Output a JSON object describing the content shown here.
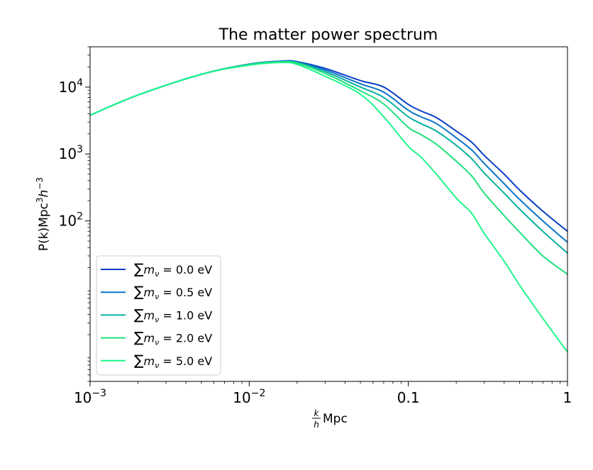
{
  "chart_data": {
    "type": "line",
    "title": "The matter power spectrum",
    "xlabel": {
      "frac_num": "k",
      "frac_den": "h",
      "rest": "Mpc"
    },
    "ylabel": {
      "pre": "P(k)Mpc",
      "sup1": "3",
      "mid": "h",
      "sup2": "−3"
    },
    "x_scale": "log",
    "y_scale": "log",
    "xlim": [
      0.001,
      1
    ],
    "ylim": [
      0.4,
      40000
    ],
    "x_ticks": [
      {
        "value": 0.001,
        "base": "10",
        "exp": "−3",
        "text": ""
      },
      {
        "value": 0.01,
        "base": "10",
        "exp": "−2",
        "text": ""
      },
      {
        "value": 0.1,
        "base": "",
        "exp": "",
        "text": "0.1"
      },
      {
        "value": 1,
        "base": "",
        "exp": "",
        "text": "1"
      }
    ],
    "y_ticks": [
      {
        "value": 100,
        "base": "10",
        "exp": "2"
      },
      {
        "value": 1000,
        "base": "10",
        "exp": "3"
      },
      {
        "value": 10000,
        "base": "10",
        "exp": "4"
      }
    ],
    "grid": false,
    "legend_position": "lower-left",
    "x": [
      0.001,
      0.002,
      0.005,
      0.01,
      0.016,
      0.02,
      0.03,
      0.05,
      0.07,
      0.1,
      0.12,
      0.15,
      0.2,
      0.25,
      0.3,
      0.4,
      0.5,
      0.7,
      1.0
    ],
    "series": [
      {
        "name_sum": "∑",
        "name_var": "m",
        "name_sub": "ν",
        "name_val": " = 0.0 eV",
        "color": "#0a3fc4",
        "values": [
          3800,
          7600,
          15500,
          22000,
          24500,
          24000,
          19000,
          12500,
          10000,
          5500,
          4400,
          3500,
          2200,
          1500,
          950,
          500,
          290,
          140,
          70
        ]
      },
      {
        "name_sum": "∑",
        "name_var": "m",
        "name_sub": "ν",
        "name_val": " = 0.5 eV",
        "color": "#0a74c8",
        "values": [
          3800,
          7600,
          15500,
          22000,
          24300,
          23700,
          18000,
          11200,
          8400,
          4500,
          3600,
          2850,
          1750,
          1150,
          720,
          360,
          210,
          100,
          48
        ]
      },
      {
        "name_sum": "∑",
        "name_var": "m",
        "name_sub": "ν",
        "name_val": " = 1.0 eV",
        "color": "#08b0a0",
        "values": [
          3800,
          7600,
          15500,
          21800,
          24000,
          23200,
          17000,
          10000,
          7000,
          3600,
          2850,
          2200,
          1350,
          850,
          520,
          260,
          150,
          70,
          33
        ]
      },
      {
        "name_sum": "∑",
        "name_var": "m",
        "name_sub": "ν",
        "name_val": " = 2.0 eV",
        "color": "#1ee07a",
        "values": [
          3800,
          7600,
          15500,
          21600,
          23800,
          22800,
          16000,
          8800,
          5600,
          2500,
          1950,
          1400,
          780,
          470,
          260,
          120,
          68,
          30,
          16
        ]
      },
      {
        "name_sum": "∑",
        "name_var": "m",
        "name_sub": "ν",
        "name_val": " = 5.0 eV",
        "color": "#1ef58c",
        "values": [
          3800,
          7600,
          15500,
          21300,
          23300,
          21800,
          14500,
          7800,
          3600,
          1300,
          900,
          500,
          220,
          130,
          65,
          25,
          11,
          3.5,
          1.1
        ]
      }
    ]
  }
}
